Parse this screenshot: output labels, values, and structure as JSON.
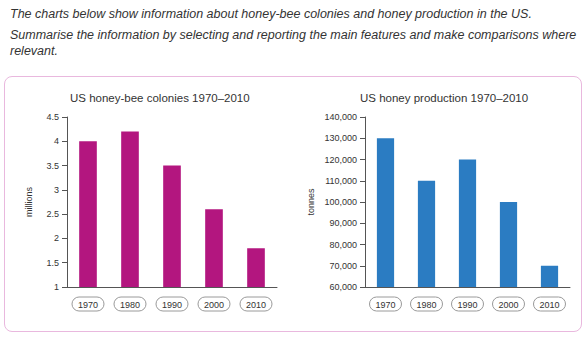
{
  "intro": [
    "The charts below show information about honey-bee colonies and honey production in the US.",
    "Summarise the information by selecting and reporting the main features and make comparisons where relevant."
  ],
  "chart_data": [
    {
      "type": "bar",
      "title": "US honey-bee colonies 1970–2010",
      "ylabel": "millions",
      "categories": [
        "1970",
        "1980",
        "1990",
        "2000",
        "2010"
      ],
      "values": [
        4.0,
        4.2,
        3.5,
        2.6,
        1.8
      ],
      "color": "#b3167f",
      "ylim": [
        1,
        4.5
      ],
      "yticks": [
        1,
        1.5,
        2,
        2.5,
        3,
        3.5,
        4,
        4.5
      ],
      "grid": false
    },
    {
      "type": "bar",
      "title": "US honey production 1970–2010",
      "ylabel": "tonnes",
      "categories": [
        "1970",
        "1980",
        "1990",
        "2000",
        "2010"
      ],
      "values": [
        130000,
        110000,
        120000,
        100000,
        70000
      ],
      "color": "#2b7cc2",
      "ylim": [
        60000,
        140000
      ],
      "yticks": [
        {
          "value": 60000,
          "label": "60,000"
        },
        {
          "value": 70000,
          "label": "70,000"
        },
        {
          "value": 80000,
          "label": "80,000"
        },
        {
          "value": 90000,
          "label": "90,000"
        },
        {
          "value": 100000,
          "label": "100,000"
        },
        {
          "value": 110000,
          "label": "110,000"
        },
        {
          "value": 120000,
          "label": "120,000"
        },
        {
          "value": 130000,
          "label": "130,000"
        },
        {
          "value": 140000,
          "label": "140,000"
        }
      ],
      "grid": false
    }
  ]
}
